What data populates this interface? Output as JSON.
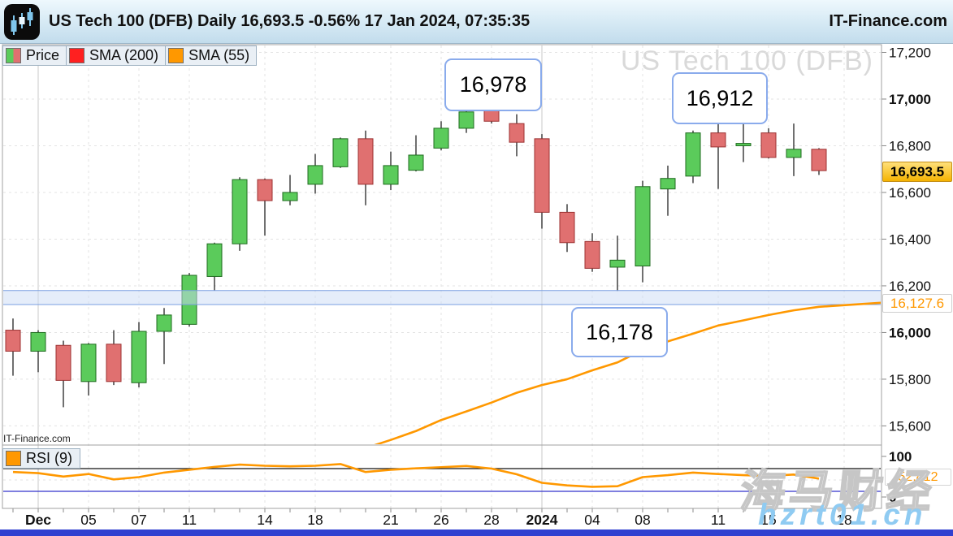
{
  "header": {
    "title": "US Tech 100 (DFB) Daily 16,693.5 -0.56% 17 Jan 2024, 07:35:35",
    "brand": "IT-Finance.com"
  },
  "legend": {
    "price_label": "Price",
    "sma200_label": "SMA (200)",
    "sma55_label": "SMA (55)",
    "rsi_label": "RSI (9)"
  },
  "watermarks": {
    "chart": "US Tech 100 (DFB)",
    "panel_small": "IT-Finance.com",
    "overlay_cn": "海马财经",
    "overlay_url": "hzrt01.cn"
  },
  "annotations": [
    {
      "label": "16,978"
    },
    {
      "label": "16,912"
    },
    {
      "label": "16,178"
    }
  ],
  "axis_badges": {
    "last_price": "16,693.5",
    "sma55_value": "16,127.6",
    "rsi_value": "52.412"
  },
  "colors": {
    "up": "#5bcb5b",
    "up_border": "#1f6b1f",
    "down": "#e07070",
    "down_border": "#9c3232",
    "wick": "#222222",
    "sma55": "#ff9800",
    "sma200": "#ff2020",
    "rsi": "#ff9800",
    "band_fill": "#ccdcf6",
    "band_border": "#7a9fe2",
    "grid": "#e3e3e3",
    "grid_major": "#c9c9c9",
    "panel_border": "#a0a0a0",
    "tick": "#888888",
    "rsi_upper_line": "#111111",
    "rsi_lower_line": "#3333cc",
    "bottom_bar": "#3040d0"
  },
  "chart_data": {
    "type": "candlestick",
    "title": "US Tech 100 (DFB)",
    "interval": "Daily",
    "last_price": 16693.5,
    "change_pct": "-0.56%",
    "timestamp": "17 Jan 2024, 07:35:35",
    "price_axis": {
      "min": 15518,
      "max": 17233
    },
    "price_ticks": [
      {
        "label": "17,200",
        "v": 17200,
        "bold": false
      },
      {
        "label": "17,000",
        "v": 17000,
        "bold": true
      },
      {
        "label": "16,800",
        "v": 16800,
        "bold": false
      },
      {
        "label": "16,600",
        "v": 16600,
        "bold": false
      },
      {
        "label": "16,400",
        "v": 16400,
        "bold": false
      },
      {
        "label": "16,200",
        "v": 16200,
        "bold": false
      },
      {
        "label": "16,000",
        "v": 16000,
        "bold": true
      },
      {
        "label": "15,800",
        "v": 15800,
        "bold": false
      },
      {
        "label": "15,600",
        "v": 15600,
        "bold": false
      }
    ],
    "x_ticks": [
      {
        "label": "Dec",
        "i": 1,
        "major": true
      },
      {
        "label": "05",
        "i": 3,
        "major": false
      },
      {
        "label": "07",
        "i": 5,
        "major": false
      },
      {
        "label": "11",
        "i": 7,
        "major": false
      },
      {
        "label": "14",
        "i": 10,
        "major": false
      },
      {
        "label": "18",
        "i": 12,
        "major": false
      },
      {
        "label": "21",
        "i": 15,
        "major": false
      },
      {
        "label": "26",
        "i": 17,
        "major": false
      },
      {
        "label": "28",
        "i": 19,
        "major": false
      },
      {
        "label": "2024",
        "i": 21,
        "major": true
      },
      {
        "label": "04",
        "i": 23,
        "major": false
      },
      {
        "label": "08",
        "i": 25,
        "major": false
      },
      {
        "label": "11",
        "i": 28,
        "major": false
      },
      {
        "label": "15",
        "i": 30,
        "major": false
      },
      {
        "label": "18",
        "i": 33,
        "major": false
      }
    ],
    "support_band": {
      "low": 16120,
      "high": 16180
    },
    "columns": [
      "date",
      "open",
      "high",
      "low",
      "close"
    ],
    "candles": [
      [
        "30 Nov",
        16010,
        16060,
        15815,
        15920
      ],
      [
        "1 Dec",
        15920,
        16010,
        15830,
        16000
      ],
      [
        "4 Dec",
        15945,
        15965,
        15680,
        15795
      ],
      [
        "5 Dec",
        15790,
        15955,
        15730,
        15950
      ],
      [
        "6 Dec",
        15950,
        16010,
        15775,
        15790
      ],
      [
        "7 Dec",
        15785,
        16045,
        15765,
        16005
      ],
      [
        "8 Dec",
        16005,
        16105,
        15865,
        16075
      ],
      [
        "11 Dec",
        16035,
        16255,
        16025,
        16245
      ],
      [
        "12 Dec",
        16240,
        16385,
        16180,
        16380
      ],
      [
        "13 Dec",
        16380,
        16665,
        16350,
        16655
      ],
      [
        "14 Dec",
        16655,
        16660,
        16415,
        16565
      ],
      [
        "15 Dec",
        16565,
        16675,
        16545,
        16600
      ],
      [
        "18 Dec",
        16635,
        16765,
        16595,
        16715
      ],
      [
        "19 Dec",
        16710,
        16835,
        16705,
        16830
      ],
      [
        "20 Dec",
        16830,
        16865,
        16545,
        16635
      ],
      [
        "21 Dec",
        16635,
        16775,
        16610,
        16715
      ],
      [
        "22 Dec",
        16695,
        16845,
        16690,
        16760
      ],
      [
        "26 Dec",
        16790,
        16905,
        16780,
        16875
      ],
      [
        "27 Dec",
        16875,
        16965,
        16855,
        16945
      ],
      [
        "28 Dec",
        16950,
        16978,
        16895,
        16905
      ],
      [
        "29 Dec",
        16895,
        16935,
        16755,
        16815
      ],
      [
        "2 Jan",
        16830,
        16850,
        16445,
        16515
      ],
      [
        "3 Jan",
        16515,
        16550,
        16345,
        16385
      ],
      [
        "4 Jan",
        16390,
        16425,
        16260,
        16275
      ],
      [
        "5 Jan",
        16280,
        16415,
        16178,
        16310
      ],
      [
        "8 Jan",
        16285,
        16650,
        16215,
        16625
      ],
      [
        "9 Jan",
        16615,
        16715,
        16500,
        16660
      ],
      [
        "10 Jan",
        16670,
        16865,
        16640,
        16855
      ],
      [
        "11 Jan",
        16855,
        16912,
        16615,
        16795
      ],
      [
        "12 Jan",
        16800,
        16895,
        16730,
        16810
      ],
      [
        "15 Jan",
        16855,
        16875,
        16745,
        16750
      ],
      [
        "16 Jan",
        16750,
        16895,
        16670,
        16785
      ],
      [
        "17 Jan",
        16785,
        16790,
        16675,
        16693.5
      ]
    ],
    "sma55_values": [
      null,
      null,
      null,
      null,
      null,
      null,
      null,
      null,
      null,
      null,
      null,
      null,
      null,
      null,
      15505,
      15540,
      15578,
      15625,
      15662,
      15700,
      15742,
      15775,
      15800,
      15838,
      15872,
      15925,
      15962,
      15995,
      16030,
      16052,
      16075,
      16095,
      16110
    ],
    "sma55_axis_value": 16127.6,
    "rsi": {
      "period": 9,
      "values": [
        64,
        62,
        56,
        60.5,
        51,
        55,
        63,
        68,
        73,
        77,
        75,
        74,
        75,
        78,
        64,
        68,
        70.5,
        72.5,
        74.5,
        70,
        60,
        45,
        40.5,
        38,
        39,
        55,
        58.5,
        63,
        60.5,
        58.5,
        57,
        59.5,
        52.412
      ],
      "upper_level": 70,
      "mid_level": 50,
      "lower_level": 30,
      "range_ticks": [
        {
          "label": "100",
          "v": 100
        },
        {
          "label": "0",
          "v": 0
        }
      ]
    }
  }
}
